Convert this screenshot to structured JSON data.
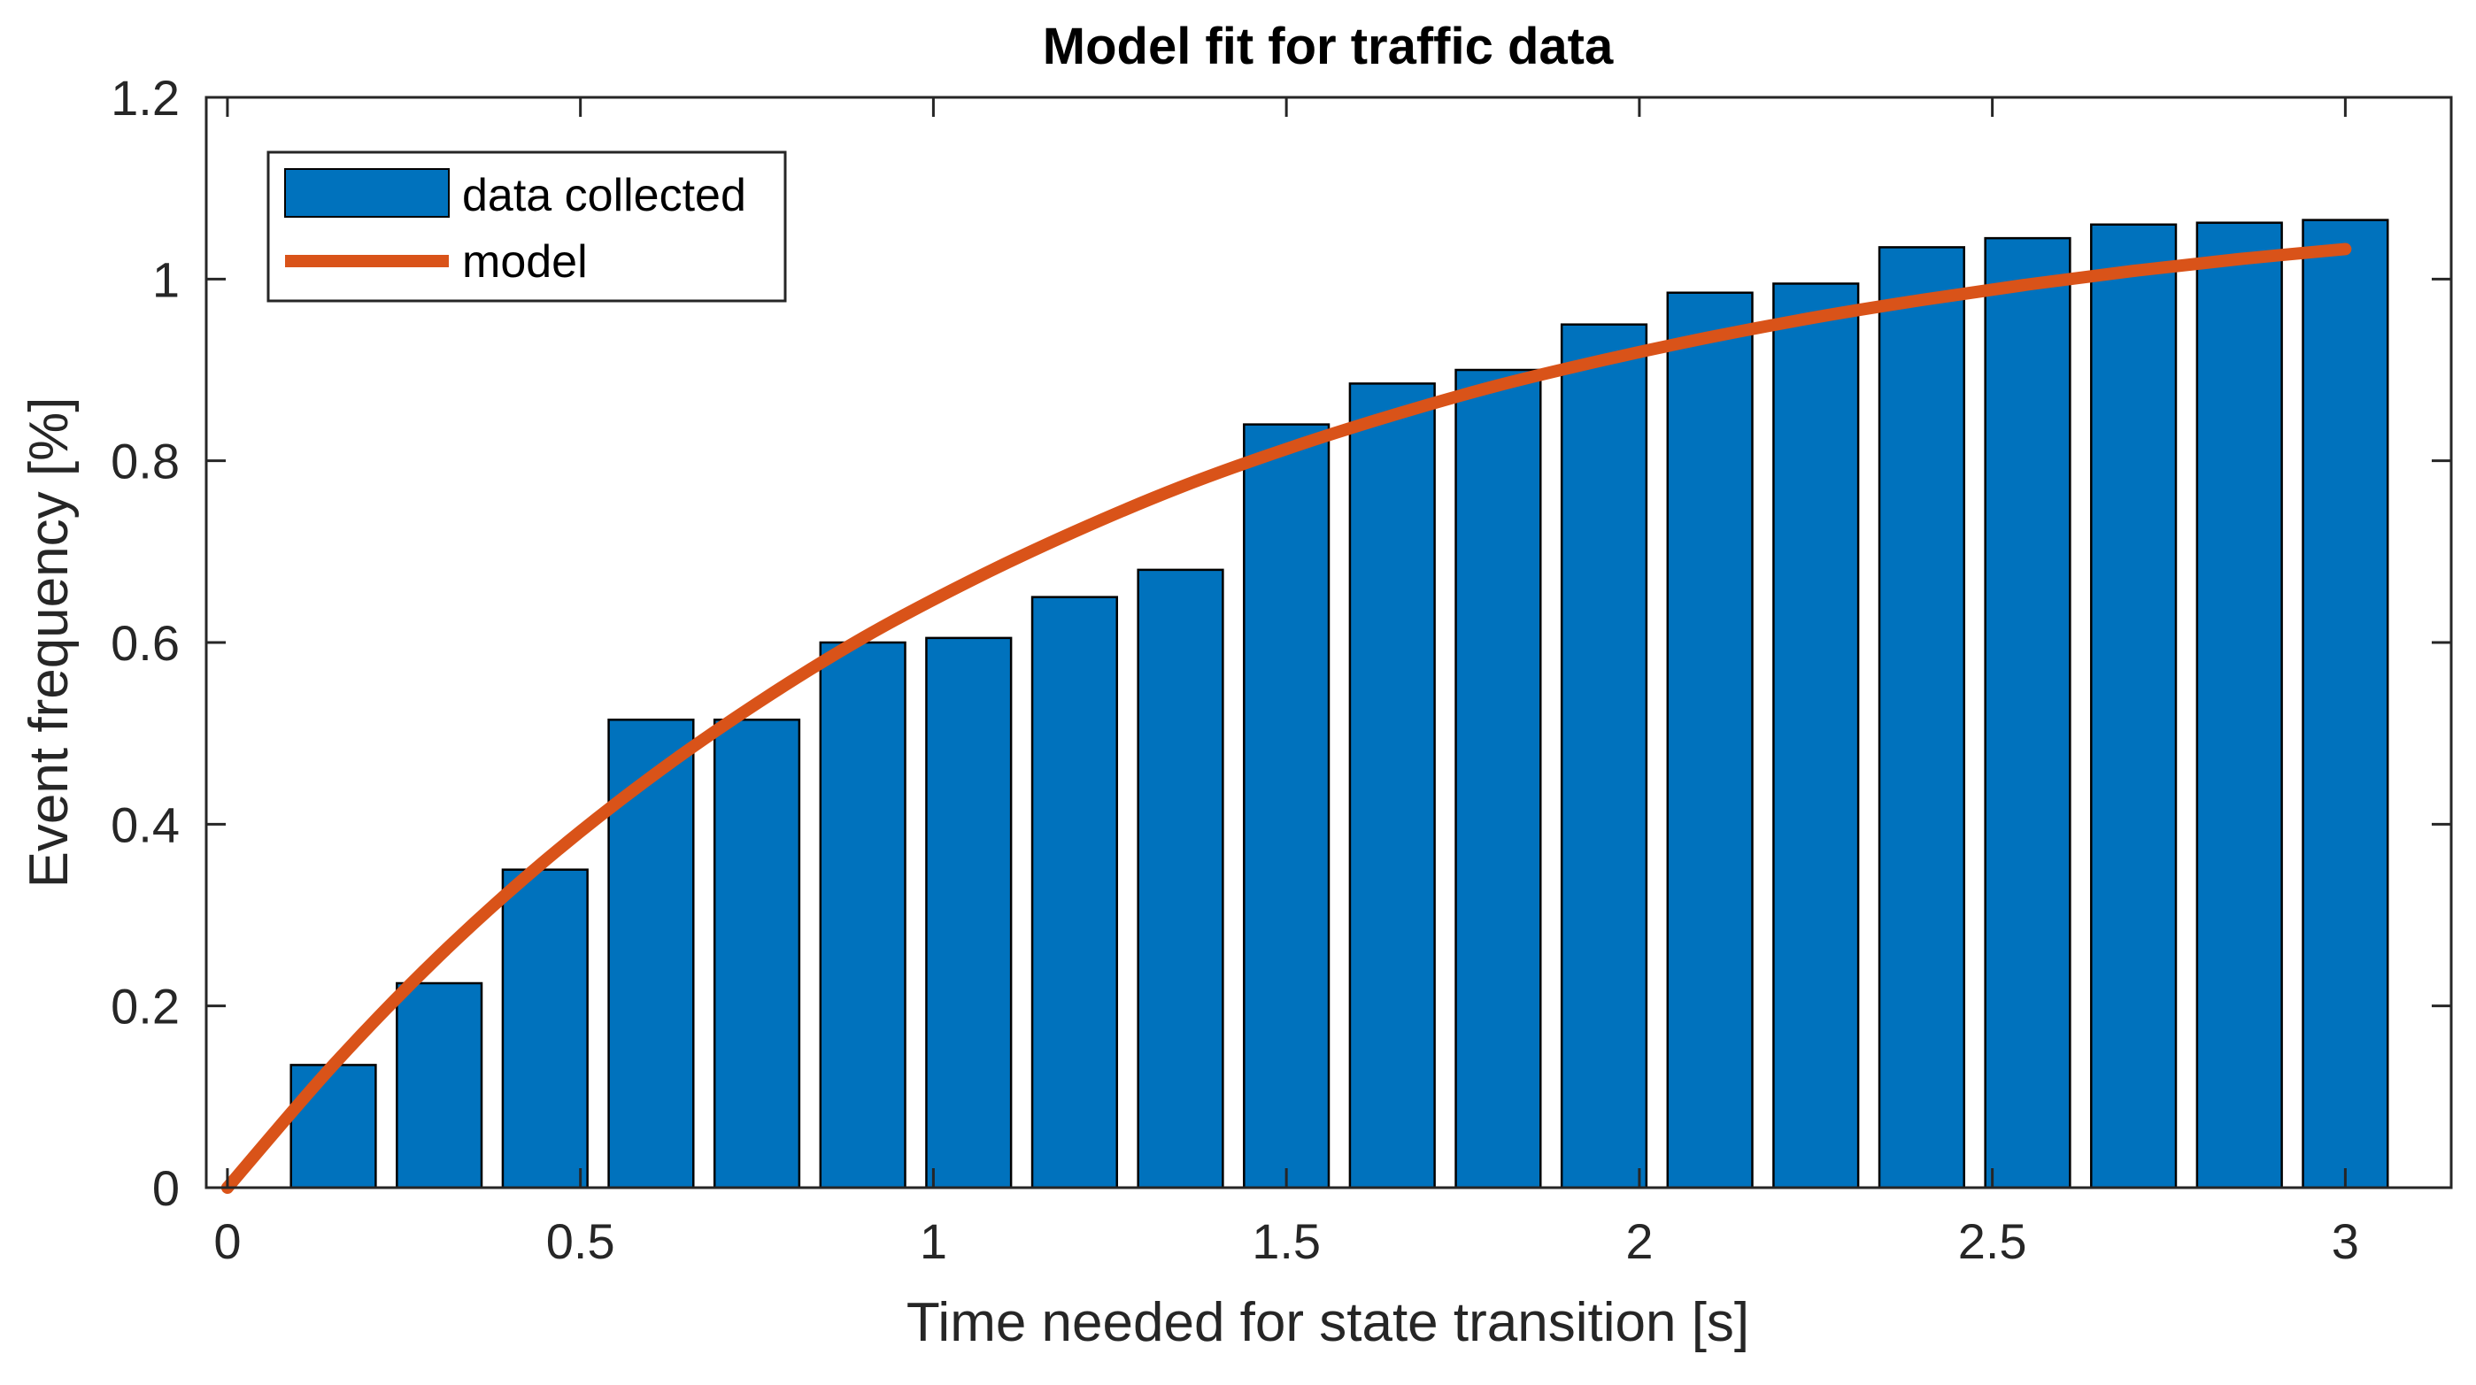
{
  "chart_data": {
    "type": "bar",
    "title": "Model fit for traffic data",
    "xlabel": "Time needed for state transition [s]",
    "ylabel": "Event frequency [%]",
    "xlim": [
      -0.03,
      3.15
    ],
    "ylim": [
      0,
      1.2
    ],
    "x_ticks": [
      0,
      0.5,
      1,
      1.5,
      2,
      2.5,
      3
    ],
    "x_tick_labels": [
      "0",
      "0.5",
      "1",
      "1.5",
      "2",
      "2.5",
      "3"
    ],
    "y_ticks": [
      0,
      0.2,
      0.4,
      0.6,
      0.8,
      1,
      1.2
    ],
    "y_tick_labels": [
      "0",
      "0.2",
      "0.4",
      "0.6",
      "0.8",
      "1",
      "1.2"
    ],
    "grid": false,
    "legend_position": "top-left",
    "bar_width": 0.12,
    "series": [
      {
        "name": "data collected",
        "type": "bar",
        "color": "#0072BD",
        "x": [
          0.15,
          0.3,
          0.45,
          0.6,
          0.75,
          0.9,
          1.05,
          1.2,
          1.35,
          1.5,
          1.65,
          1.8,
          1.95,
          2.1,
          2.25,
          2.4,
          2.55,
          2.7,
          2.85,
          3.0
        ],
        "values": [
          0.135,
          0.225,
          0.35,
          0.515,
          0.515,
          0.6,
          0.605,
          0.65,
          0.68,
          0.84,
          0.885,
          0.9,
          0.95,
          0.985,
          0.995,
          1.035,
          1.045,
          1.06,
          1.062,
          1.065
        ]
      },
      {
        "name": "model",
        "type": "line",
        "color": "#D95319",
        "x": [
          0.0,
          0.15,
          0.3,
          0.45,
          0.6,
          0.75,
          0.9,
          1.05,
          1.2,
          1.35,
          1.5,
          1.65,
          1.8,
          1.95,
          2.1,
          2.25,
          2.4,
          2.55,
          2.7,
          2.85,
          3.0
        ],
        "values": [
          0.0,
          0.135,
          0.255,
          0.36,
          0.452,
          0.533,
          0.605,
          0.667,
          0.722,
          0.771,
          0.813,
          0.85,
          0.883,
          0.911,
          0.936,
          0.958,
          0.977,
          0.994,
          1.009,
          1.022,
          1.033
        ]
      }
    ]
  }
}
